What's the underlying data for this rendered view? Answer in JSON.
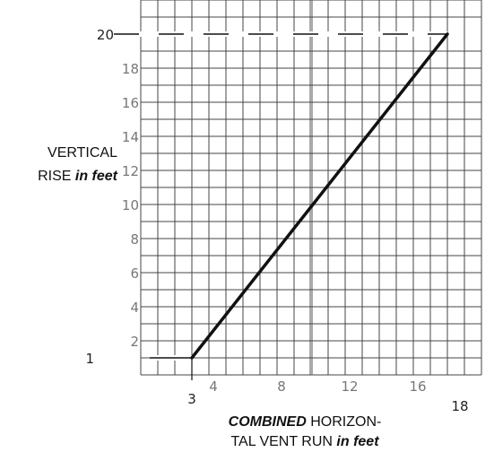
{
  "chart_data": {
    "type": "line",
    "ylabel": {
      "line1": "VERTICAL",
      "line2_plain": "RISE ",
      "line2_emph": "in feet"
    },
    "xlabel": {
      "line1_emph": "COMBINED",
      "line1_plain": " HORIZON-",
      "line2_plain": "TAL VENT RUN ",
      "line2_emph": "in feet"
    },
    "xlim": [
      0,
      20
    ],
    "ylim": [
      0,
      22
    ],
    "grid": true,
    "x_ticks": [
      {
        "value": 4,
        "label": "4"
      },
      {
        "value": 8,
        "label": "8"
      },
      {
        "value": 12,
        "label": "12"
      },
      {
        "value": 16,
        "label": "16"
      }
    ],
    "x_extra_ticks": [
      {
        "value": 3,
        "label": "3"
      },
      {
        "value": 18,
        "label": "18"
      }
    ],
    "y_ticks": [
      {
        "value": 2,
        "label": "2"
      },
      {
        "value": 4,
        "label": "4"
      },
      {
        "value": 6,
        "label": "6"
      },
      {
        "value": 8,
        "label": "8"
      },
      {
        "value": 10,
        "label": "10"
      },
      {
        "value": 12,
        "label": "12"
      },
      {
        "value": 14,
        "label": "14"
      },
      {
        "value": 16,
        "label": "16"
      },
      {
        "value": 18,
        "label": "18"
      }
    ],
    "y_extra_ticks": [
      {
        "value": 1,
        "label": "1"
      },
      {
        "value": 20,
        "label": "20"
      }
    ],
    "series": [
      {
        "points": [
          [
            3,
            1
          ],
          [
            18,
            20
          ]
        ],
        "color": "#111111"
      }
    ],
    "reference_lines": [
      {
        "type": "horizontal",
        "y": 20,
        "x_from": 0,
        "x_to": 18,
        "style": "dashed"
      },
      {
        "type": "horizontal",
        "y": 1,
        "x_from": 2,
        "x_to": 3,
        "style": "solid"
      }
    ],
    "colors": {
      "grid": "#444444",
      "grid_major": "#aaaaaa",
      "tick_text": "#777777",
      "line": "#111111"
    }
  }
}
